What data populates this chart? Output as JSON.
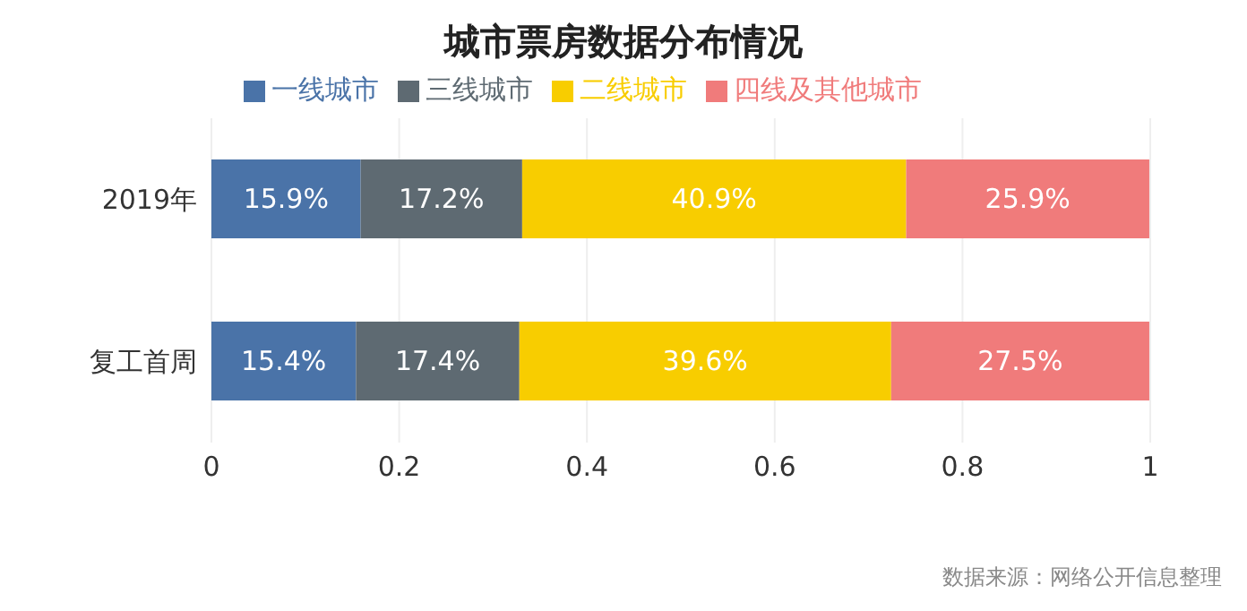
{
  "chart_data": {
    "type": "bar",
    "orientation": "horizontal",
    "stacked": true,
    "title": "城市票房数据分布情况",
    "categories": [
      "2019年",
      "复工首周"
    ],
    "series": [
      {
        "name": "一线城市",
        "color": "#4a73a8",
        "values": [
          0.159,
          0.154
        ],
        "value_labels": [
          "15.9%",
          "15.4%"
        ]
      },
      {
        "name": "三线城市",
        "color": "#5e6a72",
        "values": [
          0.172,
          0.174
        ],
        "value_labels": [
          "17.2%",
          "17.4%"
        ]
      },
      {
        "name": "二线城市",
        "color": "#f8cd00",
        "values": [
          0.409,
          0.396
        ],
        "value_labels": [
          "40.9%",
          "39.6%"
        ]
      },
      {
        "name": "四线及其他城市",
        "color": "#f07b7b",
        "values": [
          0.259,
          0.275
        ],
        "value_labels": [
          "25.9%",
          "27.5%"
        ]
      }
    ],
    "xlim": [
      0,
      1
    ],
    "xticks": [
      0,
      0.2,
      0.4,
      0.6,
      0.8,
      1
    ],
    "grid": "x",
    "legend": "top",
    "annotations": [
      "数据来源：网络公开信息整理"
    ]
  }
}
